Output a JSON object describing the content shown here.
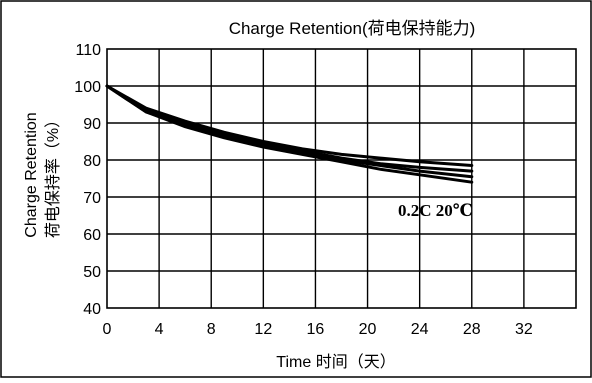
{
  "chart_data": {
    "type": "line",
    "title": "Charge Retention(荷电保持能力)",
    "xlabel": "Time 时间（天）",
    "ylabel_en": "Charge Retention",
    "ylabel_cn": "荷电保持率（%）",
    "annotation": "0.2C 20℃",
    "xlim": [
      0,
      36
    ],
    "ylim": [
      40,
      110
    ],
    "x_ticks": [
      0,
      4,
      8,
      12,
      16,
      20,
      24,
      28,
      32
    ],
    "y_ticks": [
      40,
      50,
      60,
      70,
      80,
      90,
      100,
      110
    ],
    "grid": true,
    "series": [
      {
        "x": [
          0,
          3,
          6,
          9,
          12,
          15,
          18,
          21,
          24,
          28
        ],
        "values": [
          100,
          94,
          90.5,
          87.5,
          85,
          83,
          81.5,
          80.5,
          79.5,
          78.5
        ]
      },
      {
        "x": [
          0,
          3,
          6,
          9,
          12,
          15,
          18,
          21,
          24,
          28
        ],
        "values": [
          100,
          93.5,
          90,
          87,
          84.5,
          82.5,
          80.5,
          79,
          78,
          77
        ]
      },
      {
        "x": [
          0,
          3,
          6,
          9,
          12,
          15,
          18,
          21,
          24,
          28
        ],
        "values": [
          100,
          93,
          89.5,
          86.5,
          84,
          82,
          80,
          78.5,
          77,
          75.5
        ]
      },
      {
        "x": [
          0,
          3,
          6,
          9,
          12,
          15,
          18,
          21,
          24,
          28
        ],
        "values": [
          100,
          93,
          89,
          86,
          83.5,
          81.5,
          79.5,
          77.5,
          76,
          74
        ]
      }
    ]
  }
}
